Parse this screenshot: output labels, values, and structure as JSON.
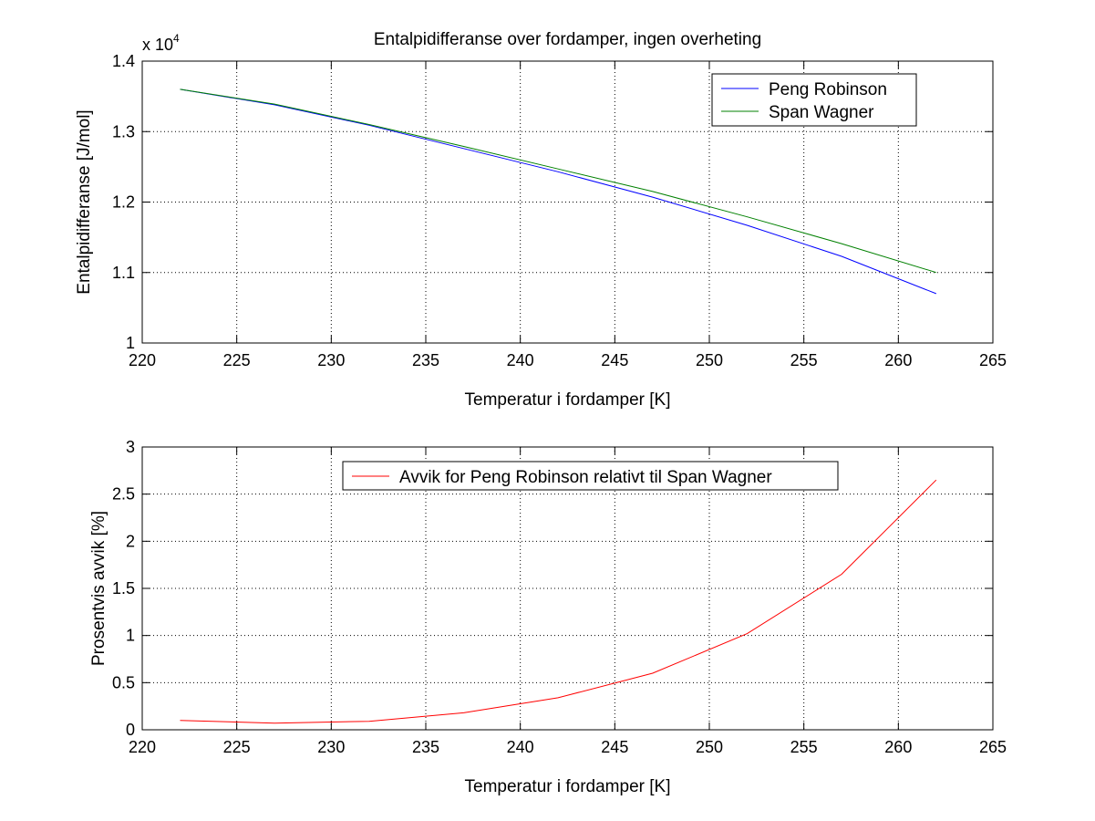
{
  "figure": {
    "background": "#ffffff"
  },
  "chart_data": [
    {
      "type": "line",
      "title": "Entalpidifferanse over fordamper, ingen overheting",
      "xlabel": "Temperatur i fordamper [K]",
      "ylabel": "Entalpidifferanse [J/mol]",
      "y_multiplier": {
        "base": "x 10",
        "exponent": "4"
      },
      "xlim": [
        220,
        265
      ],
      "ylim": [
        1.0,
        1.4
      ],
      "xticks": [
        220,
        225,
        230,
        235,
        240,
        245,
        250,
        255,
        260,
        265
      ],
      "xtick_labels": [
        "220",
        "225",
        "230",
        "235",
        "240",
        "245",
        "250",
        "255",
        "260",
        "265"
      ],
      "yticks": [
        1.0,
        1.1,
        1.2,
        1.3,
        1.4
      ],
      "ytick_labels": [
        "1",
        "1.1",
        "1.2",
        "1.3",
        "1.4"
      ],
      "grid": true,
      "legend_position": "top-right",
      "x": [
        222,
        227,
        232,
        237,
        242,
        247,
        252,
        257,
        262
      ],
      "series": [
        {
          "name": "Peng Robinson",
          "color": "#0000ff",
          "values": [
            1.36,
            1.338,
            1.309,
            1.276,
            1.243,
            1.207,
            1.167,
            1.123,
            1.07
          ]
        },
        {
          "name": "Span Wagner",
          "color": "#008000",
          "values": [
            1.36,
            1.339,
            1.31,
            1.279,
            1.247,
            1.215,
            1.179,
            1.141,
            1.1
          ]
        }
      ]
    },
    {
      "type": "line",
      "title": "",
      "xlabel": "Temperatur i fordamper [K]",
      "ylabel": "Prosentvis avvik [%]",
      "xlim": [
        220,
        265
      ],
      "ylim": [
        0,
        3
      ],
      "xticks": [
        220,
        225,
        230,
        235,
        240,
        245,
        250,
        255,
        260,
        265
      ],
      "xtick_labels": [
        "220",
        "225",
        "230",
        "235",
        "240",
        "245",
        "250",
        "255",
        "260",
        "265"
      ],
      "yticks": [
        0,
        0.5,
        1,
        1.5,
        2,
        2.5,
        3
      ],
      "ytick_labels": [
        "0",
        "0.5",
        "1",
        "1.5",
        "2",
        "2.5",
        "3"
      ],
      "grid": true,
      "legend_position": "top-center",
      "x": [
        222,
        227,
        232,
        237,
        242,
        247,
        252,
        257,
        262
      ],
      "series": [
        {
          "name": "Avvik for Peng Robinson relativt til Span Wagner",
          "color": "#ff0000",
          "values": [
            0.1,
            0.07,
            0.09,
            0.18,
            0.34,
            0.6,
            1.02,
            1.65,
            2.65
          ]
        }
      ]
    }
  ]
}
